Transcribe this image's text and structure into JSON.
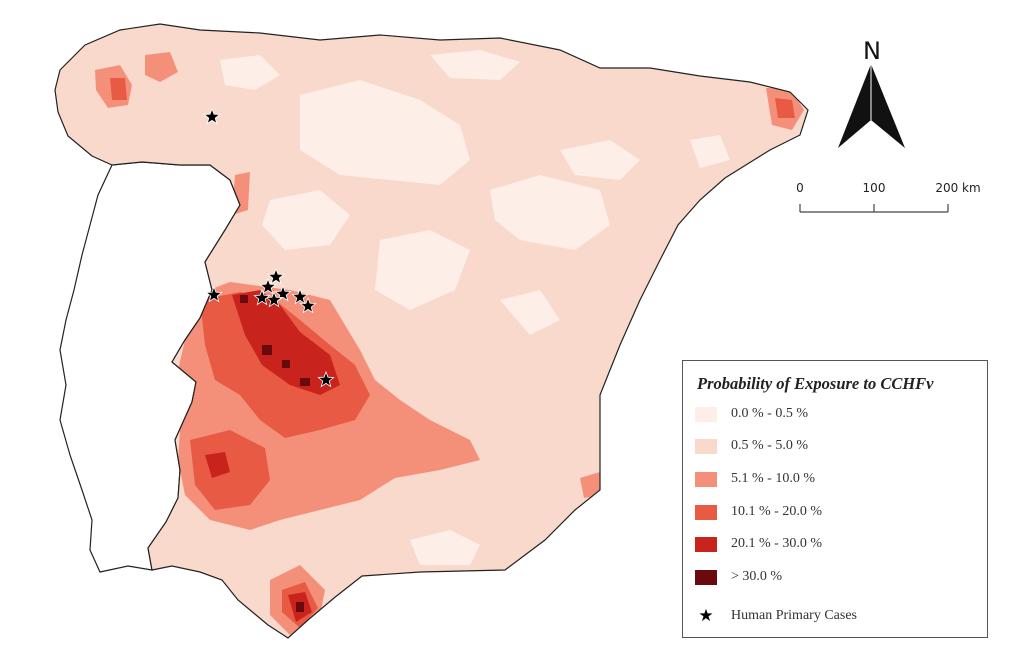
{
  "map": {
    "north_label": "N",
    "scale_bar": {
      "ticks": [
        "0",
        "100",
        "200 km"
      ]
    },
    "colors": {
      "land_outline": "#222222",
      "portugal_fill": "#ffffff",
      "base": "#f9d9cc"
    }
  },
  "legend": {
    "title": "Probability of Exposure to CCHFv",
    "classes": [
      {
        "label": "0.0 % - 0.5 %",
        "color": "#fdeee8"
      },
      {
        "label": "0.5 % - 5.0 %",
        "color": "#f9d9cc"
      },
      {
        "label": "5.1 % - 10.0 %",
        "color": "#f4907a"
      },
      {
        "label": "10.1 % - 20.0 %",
        "color": "#e85a43"
      },
      {
        "label": "20.1 % - 30.0 %",
        "color": "#c8231d"
      },
      {
        "label": "> 30.0 %",
        "color": "#6a0a0d"
      }
    ],
    "cases": {
      "label": "Human Primary Cases",
      "icon": "star-icon"
    }
  },
  "chart_data": {
    "type": "choropleth",
    "title": "Probability of Exposure to CCHFv",
    "legend_placement": "bottom-right",
    "classes": [
      "0.0 % - 0.5 %",
      "0.5 % - 5.0 %",
      "5.1 % - 10.0 %",
      "10.1 % - 20.0 %",
      "20.1 % - 30.0 %",
      "> 30.0 %"
    ],
    "point_layer": "Human Primary Cases",
    "point_count": 10,
    "scale_km": [
      0,
      100,
      200
    ]
  }
}
